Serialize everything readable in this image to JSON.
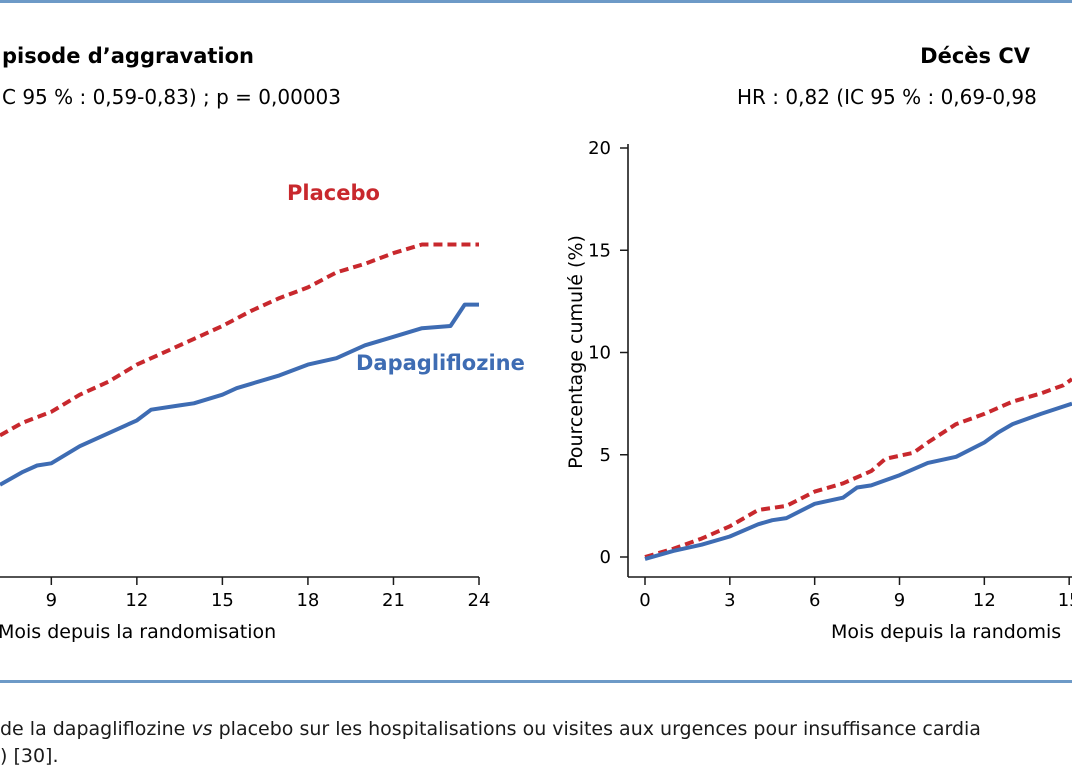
{
  "chart_data": [
    {
      "type": "line",
      "title": "pisode d’aggravation",
      "subtitle": "C 95 % : 0,59-0,83) ; p = 0,00003",
      "xlabel": "Mois depuis la randomisation",
      "ylabel": "",
      "xticks": [
        "9",
        "12",
        "15",
        "18",
        "21",
        "24"
      ],
      "yticks": [],
      "xlim": [
        7.2,
        24
      ],
      "ylim": [
        0,
        20
      ],
      "grid": false,
      "series_labels": [
        {
          "name": "Placebo",
          "color": "#c8282d"
        },
        {
          "name": "Dapagliflozine",
          "color": "#3e6cb3"
        }
      ],
      "series": [
        {
          "color": "#c8282d",
          "style": "dashed",
          "points": [
            [
              7.2,
              6.6
            ],
            [
              8,
              7.2
            ],
            [
              9,
              7.7
            ],
            [
              10,
              8.5
            ],
            [
              11,
              9.1
            ],
            [
              12,
              9.9
            ],
            [
              13,
              10.5
            ],
            [
              14,
              11.1
            ],
            [
              15,
              11.7
            ],
            [
              16,
              12.4
            ],
            [
              17,
              13.0
            ],
            [
              18,
              13.5
            ],
            [
              19,
              14.2
            ],
            [
              20,
              14.6
            ],
            [
              21,
              15.1
            ],
            [
              22,
              15.5
            ],
            [
              23,
              15.5
            ],
            [
              24,
              15.5
            ]
          ]
        },
        {
          "color": "#3e6cb3",
          "style": "solid",
          "points": [
            [
              7.2,
              4.3
            ],
            [
              8,
              4.9
            ],
            [
              8.5,
              5.2
            ],
            [
              9,
              5.3
            ],
            [
              10,
              6.1
            ],
            [
              11,
              6.7
            ],
            [
              12,
              7.3
            ],
            [
              12.5,
              7.8
            ],
            [
              13.5,
              8.0
            ],
            [
              14,
              8.1
            ],
            [
              15,
              8.5
            ],
            [
              15.5,
              8.8
            ],
            [
              16,
              9.0
            ],
            [
              17,
              9.4
            ],
            [
              18,
              9.9
            ],
            [
              19,
              10.2
            ],
            [
              20,
              10.8
            ],
            [
              21,
              11.2
            ],
            [
              22,
              11.6
            ],
            [
              23,
              11.7
            ],
            [
              23.5,
              12.7
            ],
            [
              24,
              12.7
            ]
          ]
        }
      ]
    },
    {
      "type": "line",
      "title": "Décès CV",
      "subtitle": "HR : 0,82 (IC 95 % : 0,69-0,98",
      "xlabel": "Mois depuis la randomis",
      "ylabel": "Pourcentage cumulé (%)",
      "xticks": [
        "0",
        "3",
        "6",
        "9",
        "12",
        "15"
      ],
      "yticks": [
        "0",
        "5",
        "10",
        "15",
        "20"
      ],
      "xlim": [
        0,
        15.1
      ],
      "ylim": [
        0,
        20
      ],
      "grid": false,
      "series": [
        {
          "color": "#c8282d",
          "style": "dashed",
          "points": [
            [
              0,
              0
            ],
            [
              1,
              0.4
            ],
            [
              2,
              0.9
            ],
            [
              3,
              1.5
            ],
            [
              4,
              2.3
            ],
            [
              5,
              2.5
            ],
            [
              6,
              3.2
            ],
            [
              7,
              3.6
            ],
            [
              8,
              4.2
            ],
            [
              8.5,
              4.8
            ],
            [
              9.5,
              5.1
            ],
            [
              10,
              5.6
            ],
            [
              11,
              6.5
            ],
            [
              12,
              7.0
            ],
            [
              13,
              7.6
            ],
            [
              14,
              8.0
            ],
            [
              14.8,
              8.4
            ],
            [
              15.1,
              8.7
            ]
          ]
        },
        {
          "color": "#3e6cb3",
          "style": "solid",
          "points": [
            [
              0,
              -0.1
            ],
            [
              1,
              0.3
            ],
            [
              2,
              0.6
            ],
            [
              3,
              1.0
            ],
            [
              4,
              1.6
            ],
            [
              4.5,
              1.8
            ],
            [
              5,
              1.9
            ],
            [
              6,
              2.6
            ],
            [
              7,
              2.9
            ],
            [
              7.5,
              3.4
            ],
            [
              8,
              3.5
            ],
            [
              9,
              4.0
            ],
            [
              10,
              4.6
            ],
            [
              11,
              4.9
            ],
            [
              12,
              5.6
            ],
            [
              12.5,
              6.1
            ],
            [
              13,
              6.5
            ],
            [
              14,
              7.0
            ],
            [
              15.1,
              7.5
            ]
          ]
        }
      ]
    }
  ],
  "caption": {
    "line1_prefix": "de la dapagliflozine ",
    "line1_italic": "vs",
    "line1_suffix": " placebo sur les hospitalisations ou visites aux urgences pour insuffisance cardia",
    "line2": ") [30]."
  }
}
